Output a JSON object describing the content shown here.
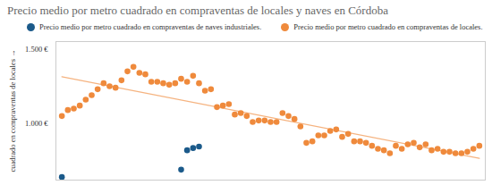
{
  "chart_data": {
    "type": "scatter",
    "title": "Precio medio por metro cuadrado en compraventas de locales y naves en Córdoba",
    "y_label": "cuadrado en compraventas de locales",
    "legend": "top",
    "grid": false,
    "tick_labels": "y",
    "categories": [
      null,
      null,
      null,
      null,
      null,
      null,
      null,
      null,
      null,
      null,
      null,
      null,
      null,
      null,
      null,
      null,
      null,
      null,
      null,
      null,
      null,
      null,
      null,
      null,
      null,
      null,
      null,
      null,
      null,
      null,
      null,
      null,
      null,
      null,
      null,
      null,
      null,
      null,
      null,
      null,
      null,
      null,
      null,
      null,
      null,
      null,
      null,
      null,
      null,
      null,
      null,
      null,
      null,
      null,
      null,
      null,
      null,
      null,
      null,
      null,
      null,
      null,
      null,
      null,
      null,
      null,
      null,
      null,
      null,
      null,
      null
    ],
    "ylim": [
      620,
      1550
    ],
    "yticks": [
      {
        "value": 1000,
        "label": "1.000 €"
      },
      {
        "value": 1500,
        "label": "1.500 €"
      }
    ],
    "series": [
      {
        "name": "Precio medio por metro cuadrado en compraventas de naves industriales.",
        "color": "#1b5a8a",
        "marker": "circle",
        "values": [
          640,
          null,
          null,
          null,
          null,
          null,
          null,
          null,
          null,
          null,
          null,
          null,
          null,
          null,
          null,
          null,
          null,
          null,
          null,
          null,
          690,
          820,
          835,
          845,
          null,
          null,
          null,
          null,
          null,
          null,
          null,
          null,
          null,
          null,
          null,
          null,
          null,
          null,
          null,
          null,
          null,
          null,
          null,
          null,
          null,
          null,
          null,
          null,
          null,
          null,
          null,
          null,
          null,
          null,
          null,
          null,
          null,
          null,
          null,
          null,
          null,
          null,
          null,
          null,
          null,
          null,
          null,
          null,
          null,
          null,
          null
        ]
      },
      {
        "name": "Precio medio por metro cuadrado en compraventas de locales.",
        "color": "#ef8a3c",
        "marker": "circle",
        "line_style": "trend",
        "values": [
          1050,
          1090,
          1100,
          1120,
          1160,
          1190,
          1230,
          1270,
          1250,
          1240,
          1290,
          1350,
          1380,
          1340,
          1330,
          1280,
          1280,
          1270,
          1260,
          1270,
          1300,
          1280,
          1320,
          1270,
          1220,
          1230,
          1110,
          1120,
          1130,
          1060,
          1070,
          1050,
          1010,
          1020,
          1020,
          1010,
          1010,
          1070,
          1050,
          1030,
          980,
          870,
          880,
          920,
          920,
          950,
          960,
          910,
          930,
          880,
          880,
          870,
          850,
          830,
          820,
          800,
          850,
          830,
          860,
          870,
          840,
          860,
          820,
          830,
          810,
          810,
          800,
          800,
          810,
          830,
          850
        ]
      }
    ]
  }
}
